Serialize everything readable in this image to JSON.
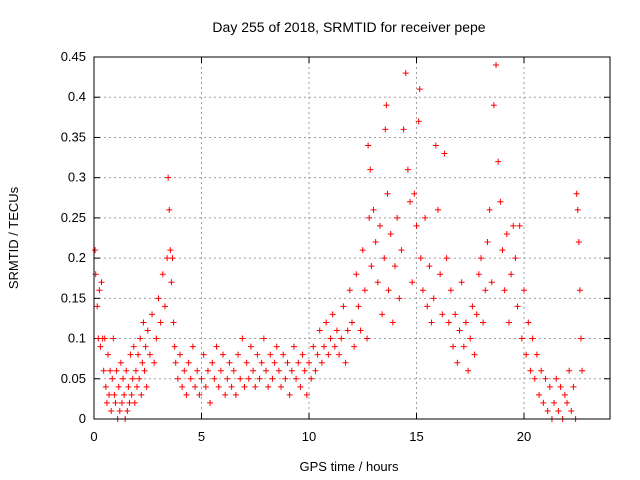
{
  "chart_data": {
    "type": "scatter",
    "title": "Day 255 of 2018, SRMTID for receiver pepe",
    "xlabel": "GPS time / hours",
    "ylabel": "SRMTID / TECUs",
    "xlim": [
      0,
      24
    ],
    "ylim": [
      0,
      0.45
    ],
    "xticks": [
      "0",
      "5",
      "10",
      "15",
      "20"
    ],
    "yticks": [
      "0",
      "0.05",
      "0.1",
      "0.15",
      "0.2",
      "0.25",
      "0.3",
      "0.35",
      "0.4",
      "0.45"
    ],
    "grid": true,
    "marker": "+",
    "color": "#ff0000",
    "series": [
      {
        "name": "SRMTID",
        "points": [
          [
            0.05,
            0.21
          ],
          [
            0.08,
            0.18
          ],
          [
            0.15,
            0.14
          ],
          [
            0.2,
            0.1
          ],
          [
            0.25,
            0.16
          ],
          [
            0.3,
            0.09
          ],
          [
            0.35,
            0.17
          ],
          [
            0.4,
            0.1
          ],
          [
            0.45,
            0.06
          ],
          [
            0.5,
            0.1
          ],
          [
            0.55,
            0.04
          ],
          [
            0.6,
            0.02
          ],
          [
            0.65,
            0.08
          ],
          [
            0.7,
            0.03
          ],
          [
            0.75,
            0.06
          ],
          [
            0.8,
            0.01
          ],
          [
            0.85,
            0.05
          ],
          [
            0.9,
            0.1
          ],
          [
            0.95,
            0.03
          ],
          [
            1.0,
            0.02
          ],
          [
            1.05,
            0.06
          ],
          [
            1.1,
            0.0
          ],
          [
            1.15,
            0.04
          ],
          [
            1.2,
            0.01
          ],
          [
            1.25,
            0.07
          ],
          [
            1.3,
            0.02
          ],
          [
            1.35,
            0.05
          ],
          [
            1.4,
            0.03
          ],
          [
            1.45,
            0.0
          ],
          [
            1.5,
            0.06
          ],
          [
            1.55,
            0.01
          ],
          [
            1.6,
            0.04
          ],
          [
            1.65,
            0.02
          ],
          [
            1.7,
            0.08
          ],
          [
            1.75,
            0.03
          ],
          [
            1.8,
            0.05
          ],
          [
            1.85,
            0.09
          ],
          [
            1.9,
            0.02
          ],
          [
            1.95,
            0.06
          ],
          [
            2.0,
            0.04
          ],
          [
            2.05,
            0.08
          ],
          [
            2.1,
            0.05
          ],
          [
            2.15,
            0.1
          ],
          [
            2.2,
            0.03
          ],
          [
            2.25,
            0.07
          ],
          [
            2.3,
            0.12
          ],
          [
            2.35,
            0.06
          ],
          [
            2.4,
            0.09
          ],
          [
            2.45,
            0.04
          ],
          [
            2.5,
            0.11
          ],
          [
            2.6,
            0.08
          ],
          [
            2.7,
            0.13
          ],
          [
            2.8,
            0.07
          ],
          [
            2.9,
            0.1
          ],
          [
            3.0,
            0.15
          ],
          [
            3.1,
            0.12
          ],
          [
            3.2,
            0.18
          ],
          [
            3.3,
            0.14
          ],
          [
            3.4,
            0.2
          ],
          [
            3.45,
            0.3
          ],
          [
            3.5,
            0.26
          ],
          [
            3.55,
            0.21
          ],
          [
            3.6,
            0.17
          ],
          [
            3.65,
            0.2
          ],
          [
            3.7,
            0.12
          ],
          [
            3.75,
            0.09
          ],
          [
            3.8,
            0.07
          ],
          [
            3.9,
            0.05
          ],
          [
            4.0,
            0.08
          ],
          [
            4.1,
            0.04
          ],
          [
            4.2,
            0.06
          ],
          [
            4.3,
            0.03
          ],
          [
            4.4,
            0.07
          ],
          [
            4.5,
            0.05
          ],
          [
            4.6,
            0.09
          ],
          [
            4.7,
            0.04
          ],
          [
            4.8,
            0.06
          ],
          [
            4.9,
            0.03
          ],
          [
            5.0,
            0.05
          ],
          [
            5.1,
            0.08
          ],
          [
            5.2,
            0.04
          ],
          [
            5.3,
            0.06
          ],
          [
            5.4,
            0.02
          ],
          [
            5.5,
            0.07
          ],
          [
            5.6,
            0.05
          ],
          [
            5.7,
            0.09
          ],
          [
            5.8,
            0.04
          ],
          [
            5.9,
            0.06
          ],
          [
            6.0,
            0.08
          ],
          [
            6.1,
            0.03
          ],
          [
            6.2,
            0.05
          ],
          [
            6.3,
            0.07
          ],
          [
            6.4,
            0.04
          ],
          [
            6.5,
            0.06
          ],
          [
            6.6,
            0.03
          ],
          [
            6.7,
            0.08
          ],
          [
            6.8,
            0.05
          ],
          [
            6.9,
            0.1
          ],
          [
            7.0,
            0.04
          ],
          [
            7.1,
            0.07
          ],
          [
            7.2,
            0.05
          ],
          [
            7.3,
            0.09
          ],
          [
            7.4,
            0.06
          ],
          [
            7.5,
            0.04
          ],
          [
            7.6,
            0.08
          ],
          [
            7.7,
            0.05
          ],
          [
            7.8,
            0.07
          ],
          [
            7.9,
            0.1
          ],
          [
            8.0,
            0.06
          ],
          [
            8.1,
            0.04
          ],
          [
            8.2,
            0.08
          ],
          [
            8.3,
            0.05
          ],
          [
            8.4,
            0.07
          ],
          [
            8.5,
            0.09
          ],
          [
            8.6,
            0.06
          ],
          [
            8.7,
            0.04
          ],
          [
            8.8,
            0.08
          ],
          [
            8.9,
            0.05
          ],
          [
            9.0,
            0.07
          ],
          [
            9.1,
            0.03
          ],
          [
            9.2,
            0.06
          ],
          [
            9.3,
            0.09
          ],
          [
            9.4,
            0.05
          ],
          [
            9.5,
            0.07
          ],
          [
            9.6,
            0.04
          ],
          [
            9.7,
            0.08
          ],
          [
            9.8,
            0.06
          ],
          [
            9.9,
            0.03
          ],
          [
            10.0,
            0.07
          ],
          [
            10.1,
            0.05
          ],
          [
            10.2,
            0.09
          ],
          [
            10.3,
            0.06
          ],
          [
            10.4,
            0.08
          ],
          [
            10.5,
            0.11
          ],
          [
            10.6,
            0.07
          ],
          [
            10.7,
            0.09
          ],
          [
            10.8,
            0.12
          ],
          [
            10.9,
            0.08
          ],
          [
            11.0,
            0.1
          ],
          [
            11.1,
            0.13
          ],
          [
            11.2,
            0.09
          ],
          [
            11.3,
            0.11
          ],
          [
            11.4,
            0.08
          ],
          [
            11.5,
            0.1
          ],
          [
            11.6,
            0.14
          ],
          [
            11.7,
            0.07
          ],
          [
            11.8,
            0.11
          ],
          [
            11.9,
            0.16
          ],
          [
            12.0,
            0.12
          ],
          [
            12.1,
            0.09
          ],
          [
            12.2,
            0.18
          ],
          [
            12.3,
            0.14
          ],
          [
            12.4,
            0.11
          ],
          [
            12.5,
            0.21
          ],
          [
            12.6,
            0.16
          ],
          [
            12.7,
            0.1
          ],
          [
            12.75,
            0.34
          ],
          [
            12.8,
            0.25
          ],
          [
            12.85,
            0.31
          ],
          [
            12.9,
            0.19
          ],
          [
            13.0,
            0.26
          ],
          [
            13.1,
            0.22
          ],
          [
            13.2,
            0.17
          ],
          [
            13.3,
            0.24
          ],
          [
            13.4,
            0.13
          ],
          [
            13.5,
            0.2
          ],
          [
            13.55,
            0.36
          ],
          [
            13.6,
            0.39
          ],
          [
            13.65,
            0.28
          ],
          [
            13.7,
            0.16
          ],
          [
            13.8,
            0.23
          ],
          [
            13.9,
            0.12
          ],
          [
            14.0,
            0.19
          ],
          [
            14.1,
            0.25
          ],
          [
            14.2,
            0.15
          ],
          [
            14.3,
            0.21
          ],
          [
            14.4,
            0.36
          ],
          [
            14.5,
            0.43
          ],
          [
            14.6,
            0.31
          ],
          [
            14.7,
            0.27
          ],
          [
            14.8,
            0.17
          ],
          [
            14.9,
            0.28
          ],
          [
            15.0,
            0.24
          ],
          [
            15.1,
            0.37
          ],
          [
            15.15,
            0.41
          ],
          [
            15.2,
            0.2
          ],
          [
            15.3,
            0.16
          ],
          [
            15.4,
            0.25
          ],
          [
            15.5,
            0.14
          ],
          [
            15.6,
            0.19
          ],
          [
            15.7,
            0.12
          ],
          [
            15.8,
            0.15
          ],
          [
            15.9,
            0.34
          ],
          [
            16.0,
            0.26
          ],
          [
            16.1,
            0.18
          ],
          [
            16.2,
            0.13
          ],
          [
            16.3,
            0.33
          ],
          [
            16.4,
            0.2
          ],
          [
            16.5,
            0.12
          ],
          [
            16.6,
            0.16
          ],
          [
            16.7,
            0.09
          ],
          [
            16.8,
            0.13
          ],
          [
            16.9,
            0.07
          ],
          [
            17.0,
            0.11
          ],
          [
            17.1,
            0.17
          ],
          [
            17.2,
            0.09
          ],
          [
            17.3,
            0.12
          ],
          [
            17.4,
            0.06
          ],
          [
            17.5,
            0.1
          ],
          [
            17.6,
            0.14
          ],
          [
            17.7,
            0.08
          ],
          [
            17.8,
            0.13
          ],
          [
            17.9,
            0.18
          ],
          [
            18.0,
            0.2
          ],
          [
            18.1,
            0.12
          ],
          [
            18.2,
            0.16
          ],
          [
            18.3,
            0.22
          ],
          [
            18.4,
            0.26
          ],
          [
            18.5,
            0.17
          ],
          [
            18.6,
            0.39
          ],
          [
            18.7,
            0.44
          ],
          [
            18.8,
            0.32
          ],
          [
            18.9,
            0.27
          ],
          [
            19.0,
            0.21
          ],
          [
            19.1,
            0.16
          ],
          [
            19.2,
            0.23
          ],
          [
            19.3,
            0.12
          ],
          [
            19.4,
            0.18
          ],
          [
            19.5,
            0.24
          ],
          [
            19.6,
            0.2
          ],
          [
            19.7,
            0.14
          ],
          [
            19.8,
            0.24
          ],
          [
            19.9,
            0.1
          ],
          [
            20.0,
            0.16
          ],
          [
            20.1,
            0.08
          ],
          [
            20.2,
            0.12
          ],
          [
            20.3,
            0.06
          ],
          [
            20.4,
            0.1
          ],
          [
            20.5,
            0.05
          ],
          [
            20.6,
            0.08
          ],
          [
            20.7,
            0.03
          ],
          [
            20.8,
            0.06
          ],
          [
            20.9,
            0.02
          ],
          [
            21.0,
            0.05
          ],
          [
            21.1,
            0.01
          ],
          [
            21.2,
            0.04
          ],
          [
            21.3,
            0.0
          ],
          [
            21.4,
            0.02
          ],
          [
            21.5,
            0.05
          ],
          [
            21.6,
            0.01
          ],
          [
            21.7,
            0.04
          ],
          [
            21.8,
            0.0
          ],
          [
            21.9,
            0.03
          ],
          [
            22.0,
            0.02
          ],
          [
            22.1,
            0.06
          ],
          [
            22.2,
            0.01
          ],
          [
            22.3,
            0.04
          ],
          [
            22.4,
            0.0
          ],
          [
            22.45,
            0.28
          ],
          [
            22.5,
            0.26
          ],
          [
            22.55,
            0.22
          ],
          [
            22.6,
            0.16
          ],
          [
            22.65,
            0.1
          ],
          [
            22.7,
            0.06
          ]
        ]
      }
    ]
  }
}
